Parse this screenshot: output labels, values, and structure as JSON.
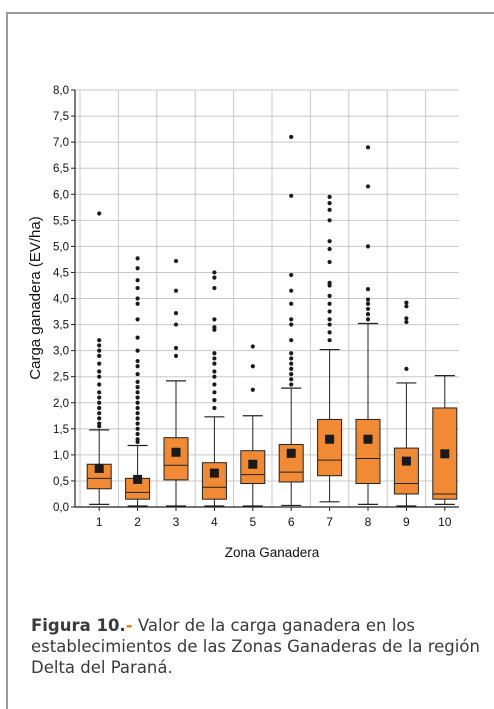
{
  "colors": {
    "box_fill": "#f08a35",
    "box_stroke": "#222222",
    "grid": "#c8c8c8",
    "frame": "#9a9a9a",
    "caption_accent": "#e6821f"
  },
  "caption": {
    "label": "Figura 10.",
    "separator": "-",
    "text": " Valor de la carga ganadera en los establecimientos de las Zonas Ganaderas de la región Delta del Paraná."
  },
  "chart_data": {
    "type": "boxplot",
    "title": "",
    "xlabel": "Zona Ganadera",
    "ylabel": "Carga ganadera (EV/ha)",
    "ylim": [
      0,
      8
    ],
    "y_ticks": [
      0,
      0.5,
      1,
      1.5,
      2,
      2.5,
      3,
      3.5,
      4,
      4.5,
      5,
      5.5,
      6,
      6.5,
      7,
      7.5,
      8
    ],
    "y_tick_labels": [
      "0,0",
      "0,5",
      "1,0",
      "1,5",
      "2,0",
      "2,5",
      "3,0",
      "3,5",
      "4,0",
      "4,5",
      "5,0",
      "5,5",
      "6,0",
      "6,5",
      "7,0",
      "7,5",
      "8,0"
    ],
    "grid": true,
    "categories": [
      "1",
      "2",
      "3",
      "4",
      "5",
      "6",
      "7",
      "8",
      "9",
      "10"
    ],
    "boxes": [
      {
        "zone": "1",
        "whisker_low": 0.05,
        "q1": 0.35,
        "median": 0.55,
        "q3": 0.82,
        "whisker_high": 1.48,
        "mean": 0.74,
        "outliers": [
          1.55,
          1.6,
          1.7,
          1.8,
          1.9,
          2.0,
          2.1,
          2.2,
          2.35,
          2.5,
          2.6,
          2.75,
          2.9,
          3.0,
          3.1,
          3.2,
          5.63
        ]
      },
      {
        "zone": "2",
        "whisker_low": 0.02,
        "q1": 0.15,
        "median": 0.28,
        "q3": 0.55,
        "whisker_high": 1.18,
        "mean": 0.53,
        "outliers": [
          1.25,
          1.3,
          1.4,
          1.5,
          1.6,
          1.7,
          1.8,
          1.9,
          2.0,
          2.1,
          2.2,
          2.3,
          2.4,
          2.55,
          2.7,
          2.8,
          3.0,
          3.25,
          3.6,
          3.9,
          4.0,
          4.2,
          4.35,
          4.58,
          4.77
        ]
      },
      {
        "zone": "3",
        "whisker_low": 0.02,
        "q1": 0.52,
        "median": 0.8,
        "q3": 1.33,
        "whisker_high": 2.42,
        "mean": 1.05,
        "outliers": [
          2.9,
          3.05,
          3.5,
          3.72,
          4.15,
          4.72
        ]
      },
      {
        "zone": "4",
        "whisker_low": 0.02,
        "q1": 0.15,
        "median": 0.38,
        "q3": 0.85,
        "whisker_high": 1.73,
        "mean": 0.65,
        "outliers": [
          1.9,
          2.05,
          2.2,
          2.35,
          2.5,
          2.6,
          2.75,
          2.85,
          2.95,
          3.4,
          3.45,
          3.6,
          4.2,
          4.4,
          4.5
        ]
      },
      {
        "zone": "5",
        "whisker_low": 0.02,
        "q1": 0.45,
        "median": 0.62,
        "q3": 1.08,
        "whisker_high": 1.75,
        "mean": 0.82,
        "outliers": [
          2.25,
          2.7,
          3.08
        ]
      },
      {
        "zone": "6",
        "whisker_low": 0.03,
        "q1": 0.48,
        "median": 0.67,
        "q3": 1.2,
        "whisker_high": 2.28,
        "mean": 1.03,
        "outliers": [
          2.35,
          2.45,
          2.55,
          2.65,
          2.75,
          2.85,
          2.95,
          3.2,
          3.5,
          3.6,
          3.9,
          4.15,
          4.45,
          5.97,
          7.1
        ]
      },
      {
        "zone": "7",
        "whisker_low": 0.1,
        "q1": 0.6,
        "median": 0.9,
        "q3": 1.68,
        "whisker_high": 3.02,
        "mean": 1.3,
        "outliers": [
          3.2,
          3.35,
          3.5,
          3.6,
          3.75,
          3.9,
          4.05,
          4.25,
          4.3,
          4.7,
          4.95,
          5.1,
          5.5,
          5.7,
          5.83,
          5.95
        ]
      },
      {
        "zone": "8",
        "whisker_low": 0.05,
        "q1": 0.45,
        "median": 0.93,
        "q3": 1.68,
        "whisker_high": 3.52,
        "mean": 1.3,
        "outliers": [
          3.6,
          3.7,
          3.8,
          3.9,
          3.98,
          4.18,
          5.0,
          6.15,
          6.9
        ]
      },
      {
        "zone": "9",
        "whisker_low": 0.02,
        "q1": 0.25,
        "median": 0.45,
        "q3": 1.13,
        "whisker_high": 2.38,
        "mean": 0.88,
        "outliers": [
          2.65,
          3.55,
          3.62,
          3.85,
          3.92
        ]
      },
      {
        "zone": "10",
        "whisker_low": 0.05,
        "q1": 0.15,
        "median": 0.25,
        "q3": 1.9,
        "whisker_high": 2.52,
        "mean": 1.02,
        "outliers": []
      }
    ]
  }
}
